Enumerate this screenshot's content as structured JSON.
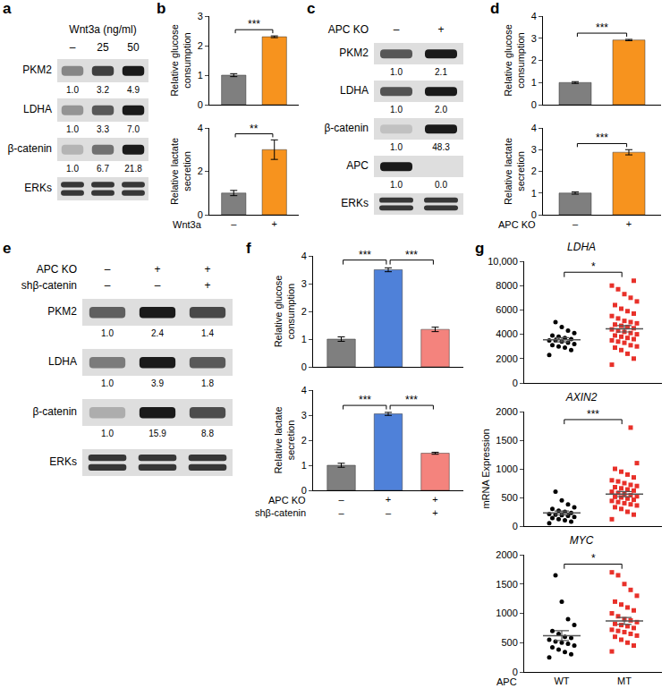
{
  "chart_data": [
    {
      "panel": "a",
      "type": "blot",
      "treatments": [
        {
          "label": "Wnt3a (ng/ml)",
          "lanes": [
            "–",
            "25",
            "50"
          ]
        }
      ],
      "rows": [
        {
          "name": "PKM2",
          "values": [
            1,
            3.2,
            4.9
          ],
          "value_labels": [
            "1.0",
            "3.2",
            "4.9"
          ]
        },
        {
          "name": "LDHA",
          "values": [
            1,
            3.3,
            7
          ],
          "value_labels": [
            "1.0",
            "3.3",
            "7.0"
          ]
        },
        {
          "name": "β-catenin",
          "values": [
            1,
            6.7,
            21.8
          ],
          "value_labels": [
            "1.0",
            "6.7",
            "21.8"
          ]
        },
        {
          "name": "ERKs"
        }
      ]
    },
    {
      "panel": "b",
      "type": "bar",
      "y_label": "Relative glucose\nconsumption",
      "values": [
        1,
        2.3
      ],
      "errors": [
        0.05,
        0.03
      ],
      "colors": [
        "#7f7f7f",
        "#f7931e"
      ],
      "ylim": [
        0,
        3
      ],
      "yticks": [
        0,
        1,
        2,
        3
      ],
      "tick_labels": "y",
      "significance": [
        {
          "from": 0,
          "to": 1,
          "text": "***"
        }
      ]
    },
    {
      "type": "bar",
      "y_label": "Relative lactate\nsecretion",
      "values": [
        1,
        3
      ],
      "errors": [
        0.12,
        0.45
      ],
      "colors": [
        "#7f7f7f",
        "#f7931e"
      ],
      "ylim": [
        0,
        4
      ],
      "yticks": [
        0,
        2,
        4
      ],
      "x_rows": [
        {
          "label": "Wnt3a",
          "values": [
            "–",
            "+"
          ]
        }
      ],
      "significance": [
        {
          "from": 0,
          "to": 1,
          "text": "**"
        }
      ]
    },
    {
      "panel": "c",
      "type": "blot",
      "treatments": [
        {
          "label": "APC KO",
          "lanes": [
            "–",
            "+"
          ]
        }
      ],
      "rows": [
        {
          "name": "PKM2",
          "values": [
            1,
            2.1
          ],
          "value_labels": [
            "1.0",
            "2.1"
          ]
        },
        {
          "name": "LDHA",
          "values": [
            1,
            2
          ],
          "value_labels": [
            "1.0",
            "2.0"
          ]
        },
        {
          "name": "β-catenin",
          "values": [
            1,
            48.3
          ],
          "value_labels": [
            "1.0",
            "48.3"
          ]
        },
        {
          "name": "APC",
          "values": [
            1,
            0
          ],
          "value_labels": [
            "1.0",
            "0.0"
          ]
        },
        {
          "name": "ERKs"
        }
      ]
    },
    {
      "panel": "d",
      "type": "bar",
      "y_label": "Relative glucose\nconsumption",
      "values": [
        1,
        2.92
      ],
      "errors": [
        0.04,
        0.03
      ],
      "colors": [
        "#7f7f7f",
        "#f7931e"
      ],
      "ylim": [
        0,
        4
      ],
      "yticks": [
        0,
        1,
        2,
        3,
        4
      ],
      "tick_labels": "y",
      "significance": [
        {
          "from": 0,
          "to": 1,
          "text": "***"
        }
      ]
    },
    {
      "type": "bar",
      "y_label": "Relative lactate\nsecretion",
      "values": [
        1,
        2.88
      ],
      "errors": [
        0.05,
        0.12
      ],
      "colors": [
        "#7f7f7f",
        "#f7931e"
      ],
      "ylim": [
        0,
        4
      ],
      "yticks": [
        0,
        1,
        2,
        3,
        4
      ],
      "x_rows": [
        {
          "label": "APC KO",
          "values": [
            "–",
            "+"
          ]
        }
      ],
      "significance": [
        {
          "from": 0,
          "to": 1,
          "text": "***"
        }
      ]
    },
    {
      "panel": "e",
      "type": "blot",
      "treatments": [
        {
          "label": "APC KO",
          "lanes": [
            "–",
            "+",
            "+"
          ]
        },
        {
          "label": "shβ-catenin",
          "lanes": [
            "–",
            "–",
            "+"
          ]
        }
      ],
      "rows": [
        {
          "name": "PKM2",
          "values": [
            1,
            2.4,
            1.4
          ],
          "value_labels": [
            "1.0",
            "2.4",
            "1.4"
          ]
        },
        {
          "name": "LDHA",
          "values": [
            1,
            3.9,
            1.8
          ],
          "value_labels": [
            "1.0",
            "3.9",
            "1.8"
          ]
        },
        {
          "name": "β-catenin",
          "values": [
            1,
            15.9,
            8.8
          ],
          "value_labels": [
            "1.0",
            "15.9",
            "8.8"
          ]
        },
        {
          "name": "ERKs"
        }
      ]
    },
    {
      "panel": "f",
      "type": "bar",
      "y_label": "Relative glucose\nconsumption",
      "values": [
        1,
        3.5,
        1.35
      ],
      "errors": [
        0.08,
        0.07,
        0.08
      ],
      "colors": [
        "#7f7f7f",
        "#4f81d9",
        "#f4837d"
      ],
      "ylim": [
        0,
        4
      ],
      "yticks": [
        0,
        1,
        2,
        3,
        4
      ],
      "tick_labels": "y",
      "significance": [
        {
          "from": 0,
          "to": 1,
          "text": "***"
        },
        {
          "from": 1,
          "to": 2,
          "text": "***"
        }
      ]
    },
    {
      "type": "bar",
      "y_label": "Relative lactate\nsecretion",
      "values": [
        1,
        3.05,
        1.48
      ],
      "errors": [
        0.08,
        0.06,
        0.04
      ],
      "colors": [
        "#7f7f7f",
        "#4f81d9",
        "#f4837d"
      ],
      "ylim": [
        0,
        4
      ],
      "yticks": [
        0,
        1,
        2,
        3,
        4
      ],
      "x_rows": [
        {
          "label": "APC KO",
          "values": [
            "–",
            "+",
            "+"
          ]
        },
        {
          "label": "shβ-catenin",
          "values": [
            "–",
            "–",
            "+"
          ]
        }
      ],
      "significance": [
        {
          "from": 0,
          "to": 1,
          "text": "***"
        },
        {
          "from": 1,
          "to": 2,
          "text": "***"
        }
      ]
    },
    {
      "panel": "g",
      "type": "scatter",
      "title": "LDHA",
      "ylim": [
        0,
        10000
      ],
      "yticks": [
        0,
        2000,
        4000,
        6000,
        8000,
        {
          "value": 10000,
          "label": "10,000"
        }
      ],
      "tick_labels": "y",
      "series": [
        {
          "color": "#000000",
          "marker": "circle",
          "mean": 3550,
          "error": 170,
          "values": [
            2300,
            2700,
            2900,
            3000,
            3100,
            3200,
            3300,
            3400,
            3500,
            3500,
            3600,
            3700,
            3800,
            3900,
            4100,
            4300,
            4600,
            5000
          ]
        },
        {
          "color": "#e8312a",
          "marker": "square",
          "mean": 4450,
          "error": 260,
          "values": [
            1500,
            2000,
            2400,
            2700,
            2900,
            3000,
            3100,
            3300,
            3400,
            3500,
            3600,
            3700,
            3800,
            3900,
            4000,
            4100,
            4200,
            4300,
            4400,
            4500,
            4600,
            4700,
            4800,
            4900,
            5000,
            5100,
            5300,
            5500,
            5700,
            5900,
            6100,
            6400,
            6700,
            7000,
            7300,
            7700,
            8000,
            8400
          ]
        }
      ],
      "significance": [
        {
          "from": 0,
          "to": 1,
          "text": "*"
        }
      ]
    },
    {
      "type": "scatter",
      "title": "AXIN2",
      "y_label": "mRNA Expression",
      "ylim": [
        0,
        2000
      ],
      "yticks": [
        0,
        500,
        1000,
        1500,
        2000
      ],
      "tick_labels": "y",
      "series": [
        {
          "color": "#000000",
          "marker": "circle",
          "mean": 230,
          "error": 35,
          "values": [
            50,
            80,
            100,
            120,
            140,
            160,
            180,
            190,
            200,
            210,
            230,
            250,
            270,
            300,
            330,
            380,
            450,
            600
          ]
        },
        {
          "color": "#e8312a",
          "marker": "square",
          "mean": 560,
          "error": 45,
          "values": [
            120,
            200,
            250,
            300,
            330,
            360,
            380,
            400,
            420,
            440,
            460,
            480,
            500,
            510,
            520,
            540,
            560,
            580,
            600,
            620,
            640,
            660,
            680,
            700,
            720,
            750,
            780,
            800,
            850,
            900,
            950,
            1000,
            1100,
            1720
          ]
        }
      ],
      "significance": [
        {
          "from": 0,
          "to": 1,
          "text": "***"
        }
      ]
    },
    {
      "type": "scatter",
      "title": "MYC",
      "ylim": [
        0,
        2000
      ],
      "yticks": [
        0,
        500,
        1000,
        1500,
        2000
      ],
      "x_rows": [
        {
          "label": "APC",
          "values": [
            "WT",
            "MT"
          ]
        }
      ],
      "series": [
        {
          "color": "#000000",
          "marker": "circle",
          "mean": 620,
          "error": 85,
          "values": [
            250,
            300,
            340,
            380,
            420,
            450,
            480,
            500,
            520,
            550,
            580,
            600,
            650,
            700,
            800,
            900,
            1200,
            1650
          ]
        },
        {
          "color": "#e8312a",
          "marker": "square",
          "mean": 870,
          "error": 60,
          "values": [
            350,
            450,
            500,
            550,
            600,
            620,
            650,
            680,
            700,
            720,
            750,
            780,
            800,
            820,
            850,
            880,
            900,
            950,
            1000,
            1050,
            1100,
            1150,
            1200,
            1300,
            1400,
            1500,
            1650,
            1700
          ]
        }
      ],
      "significance": [
        {
          "from": 0,
          "to": 1,
          "text": "*"
        }
      ]
    }
  ]
}
